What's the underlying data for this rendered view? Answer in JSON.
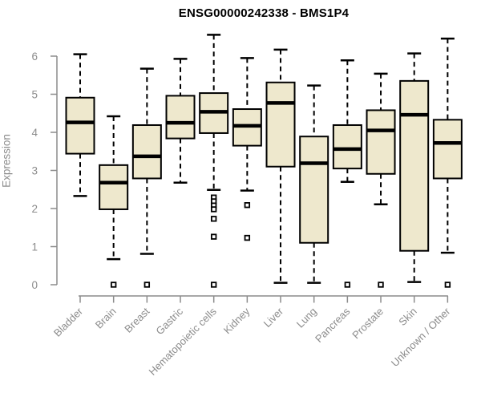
{
  "title": "ENSG00000242338 - BMS1P4",
  "colors": {
    "background": "#FFFFFF",
    "box_fill": "#EEE8CD",
    "box_stroke": "#000000",
    "median_color": "#000000",
    "whisker_color": "#000000",
    "outlier_color": "#000000",
    "axis_color": "#8C8C8C",
    "axis_text_color": "#8C8C8C",
    "title_color": "#000000"
  },
  "chart_data": {
    "type": "box",
    "title": "ENSG00000242338 - BMS1P4",
    "xlabel": "",
    "ylabel": "Expression",
    "ylim": [
      0,
      6.6
    ],
    "yticks": [
      "0",
      "1",
      "2",
      "3",
      "4",
      "5",
      "6"
    ],
    "grid": "off",
    "legend": "none",
    "categories": [
      "Bladder",
      "Brain",
      "Breast",
      "Gastric",
      "Hematopoietic cells",
      "Kidney",
      "Liver",
      "Lung",
      "Pancreas",
      "Prostate",
      "Skin",
      "Unknown / Other"
    ],
    "series": [
      {
        "name": "Bladder",
        "whisker_low": 2.33,
        "q1": 3.44,
        "median": 4.26,
        "q3": 4.91,
        "whisker_high": 6.05,
        "outliers": []
      },
      {
        "name": "Brain",
        "whisker_low": 0.67,
        "q1": 1.98,
        "median": 2.68,
        "q3": 3.14,
        "whisker_high": 4.42,
        "outliers": [
          0
        ]
      },
      {
        "name": "Breast",
        "whisker_low": 0.81,
        "q1": 2.79,
        "median": 3.37,
        "q3": 4.19,
        "whisker_high": 5.67,
        "outliers": [
          0
        ]
      },
      {
        "name": "Gastric",
        "whisker_low": 2.68,
        "q1": 3.84,
        "median": 4.25,
        "q3": 4.96,
        "whisker_high": 5.93,
        "outliers": []
      },
      {
        "name": "Hematopoietic cells",
        "whisker_low": 2.49,
        "q1": 3.98,
        "median": 4.54,
        "q3": 5.03,
        "whisker_high": 6.56,
        "outliers": [
          2.29,
          2.19,
          2.08,
          1.98,
          1.73,
          1.26,
          0
        ]
      },
      {
        "name": "Kidney",
        "whisker_low": 2.47,
        "q1": 3.65,
        "median": 4.17,
        "q3": 4.61,
        "whisker_high": 5.95,
        "outliers": [
          2.09,
          1.23
        ]
      },
      {
        "name": "Liver",
        "whisker_low": 0.05,
        "q1": 3.1,
        "median": 4.77,
        "q3": 5.31,
        "whisker_high": 6.17,
        "outliers": []
      },
      {
        "name": "Lung",
        "whisker_low": 0.05,
        "q1": 1.1,
        "median": 3.19,
        "q3": 3.89,
        "whisker_high": 5.23,
        "outliers": []
      },
      {
        "name": "Pancreas",
        "whisker_low": 2.7,
        "q1": 3.05,
        "median": 3.56,
        "q3": 4.19,
        "whisker_high": 5.89,
        "outliers": [
          0
        ]
      },
      {
        "name": "Prostate",
        "whisker_low": 2.11,
        "q1": 2.91,
        "median": 4.05,
        "q3": 4.58,
        "whisker_high": 5.54,
        "outliers": [
          0
        ]
      },
      {
        "name": "Skin",
        "whisker_low": 0.07,
        "q1": 0.89,
        "median": 4.46,
        "q3": 5.35,
        "whisker_high": 6.07,
        "outliers": []
      },
      {
        "name": "Unknown / Other",
        "whisker_low": 0.84,
        "q1": 2.79,
        "median": 3.72,
        "q3": 4.33,
        "whisker_high": 6.46,
        "outliers": [
          0
        ]
      }
    ]
  }
}
